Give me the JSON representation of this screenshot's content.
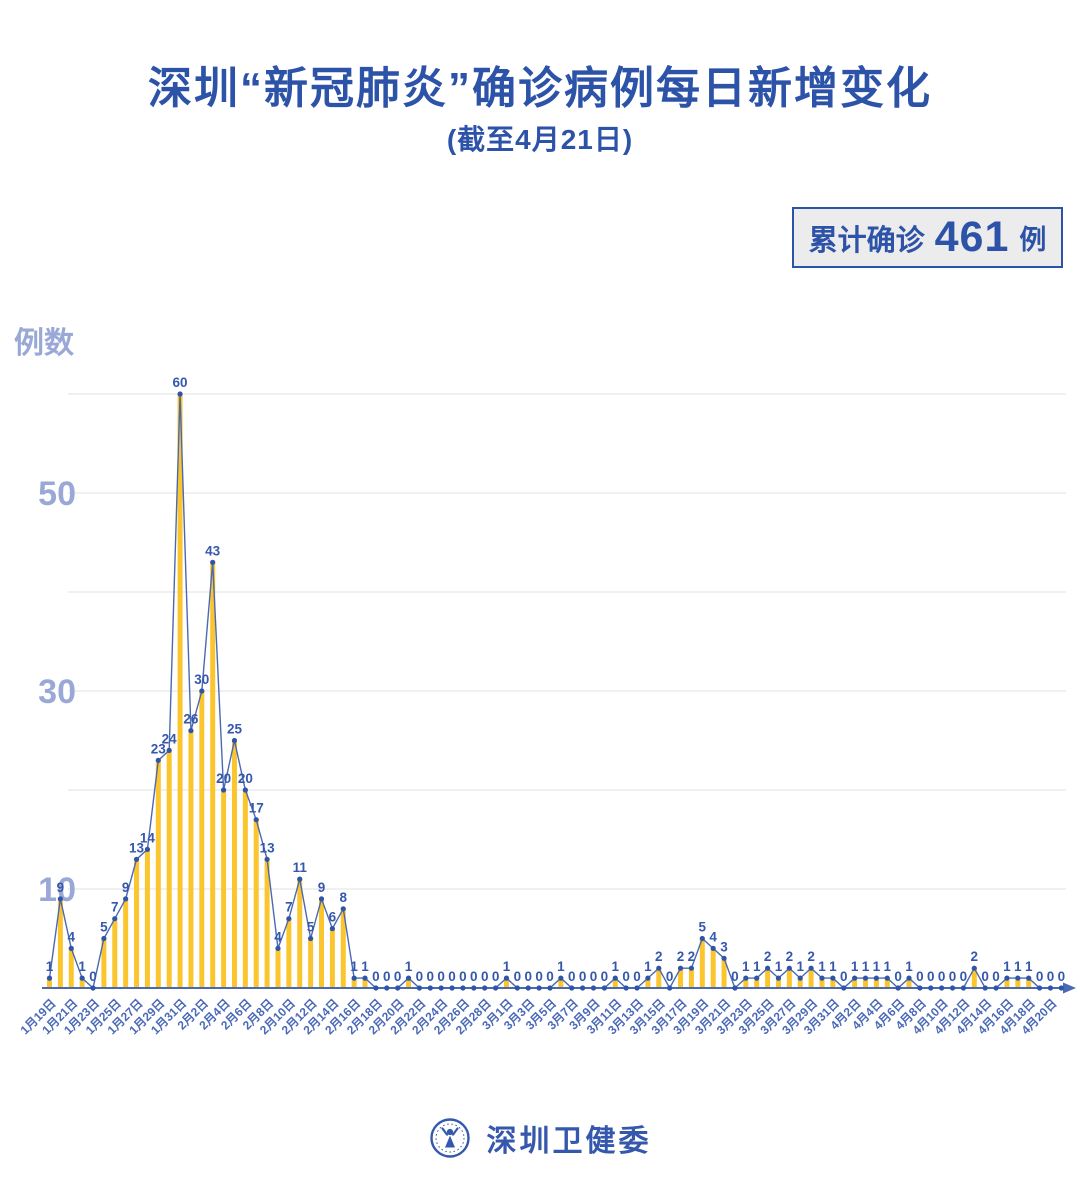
{
  "page": {
    "title": "深圳“新冠肺炎”确诊病例每日新增变化",
    "subtitle": "(截至4月21日)",
    "badge": {
      "label": "累计确诊",
      "value": "461",
      "unit": "例"
    },
    "footer": {
      "org": "深圳卫健委"
    }
  },
  "colors": {
    "title_blue": "#2d53a9",
    "bar_yellow": "#fbc52d",
    "line_blue": "#4a69b4",
    "dot_blue": "#2f55a8",
    "value_label_blue": "#3558ad",
    "date_label_blue": "#4a69b8",
    "y_label_periwinkle": "#99a8d6",
    "gridline_gray": "#e7e7e7",
    "badge_bg": "#ececec"
  },
  "chart_data": {
    "type": "bar",
    "title": "深圳“新冠肺炎”确诊病例每日新增变化 (截至4月21日)",
    "ylabel": "例数",
    "xlabel": "",
    "ylim": [
      0,
      62
    ],
    "grid": true,
    "gridline_values": [
      10,
      20,
      30,
      40,
      50,
      60
    ],
    "y_tick_labels": [
      10,
      30,
      50
    ],
    "x_start_date": "1月19日",
    "x_end_date": "4月21日",
    "x_tick_step": 2,
    "x_tick_labels": [
      "1月19日",
      "1月21日",
      "1月23日",
      "1月25日",
      "1月27日",
      "1月29日",
      "1月31日",
      "2月2日",
      "2月4日",
      "2月6日",
      "2月8日",
      "2月10日",
      "2月12日",
      "2月14日",
      "2月16日",
      "2月18日",
      "2月20日",
      "2月22日",
      "2月24日",
      "2月26日",
      "2月28日",
      "3月1日",
      "3月3日",
      "3月5日",
      "3月7日",
      "3月9日",
      "3月11日",
      "3月13日",
      "3月15日",
      "3月17日",
      "3月19日",
      "3月21日",
      "3月23日",
      "3月25日",
      "3月27日",
      "3月29日",
      "3月31日",
      "4月2日",
      "4月4日",
      "4月6日",
      "4月8日",
      "4月10日",
      "4月12日",
      "4月14日",
      "4月16日",
      "4月18日",
      "4月20日"
    ],
    "values": [
      1,
      9,
      4,
      1,
      0,
      5,
      7,
      9,
      13,
      14,
      23,
      24,
      60,
      26,
      30,
      43,
      20,
      25,
      20,
      17,
      13,
      4,
      7,
      11,
      5,
      9,
      6,
      8,
      1,
      1,
      0,
      0,
      0,
      1,
      0,
      0,
      0,
      0,
      0,
      0,
      0,
      0,
      1,
      0,
      0,
      0,
      0,
      1,
      0,
      0,
      0,
      0,
      1,
      0,
      0,
      1,
      2,
      0,
      2,
      2,
      5,
      4,
      3,
      0,
      1,
      1,
      2,
      1,
      2,
      1,
      2,
      1,
      1,
      0,
      1,
      1,
      1,
      1,
      0,
      1,
      0,
      0,
      0,
      0,
      0,
      2,
      0,
      0,
      1,
      1,
      1,
      0,
      0,
      0
    ],
    "cumulative_total": 461
  }
}
